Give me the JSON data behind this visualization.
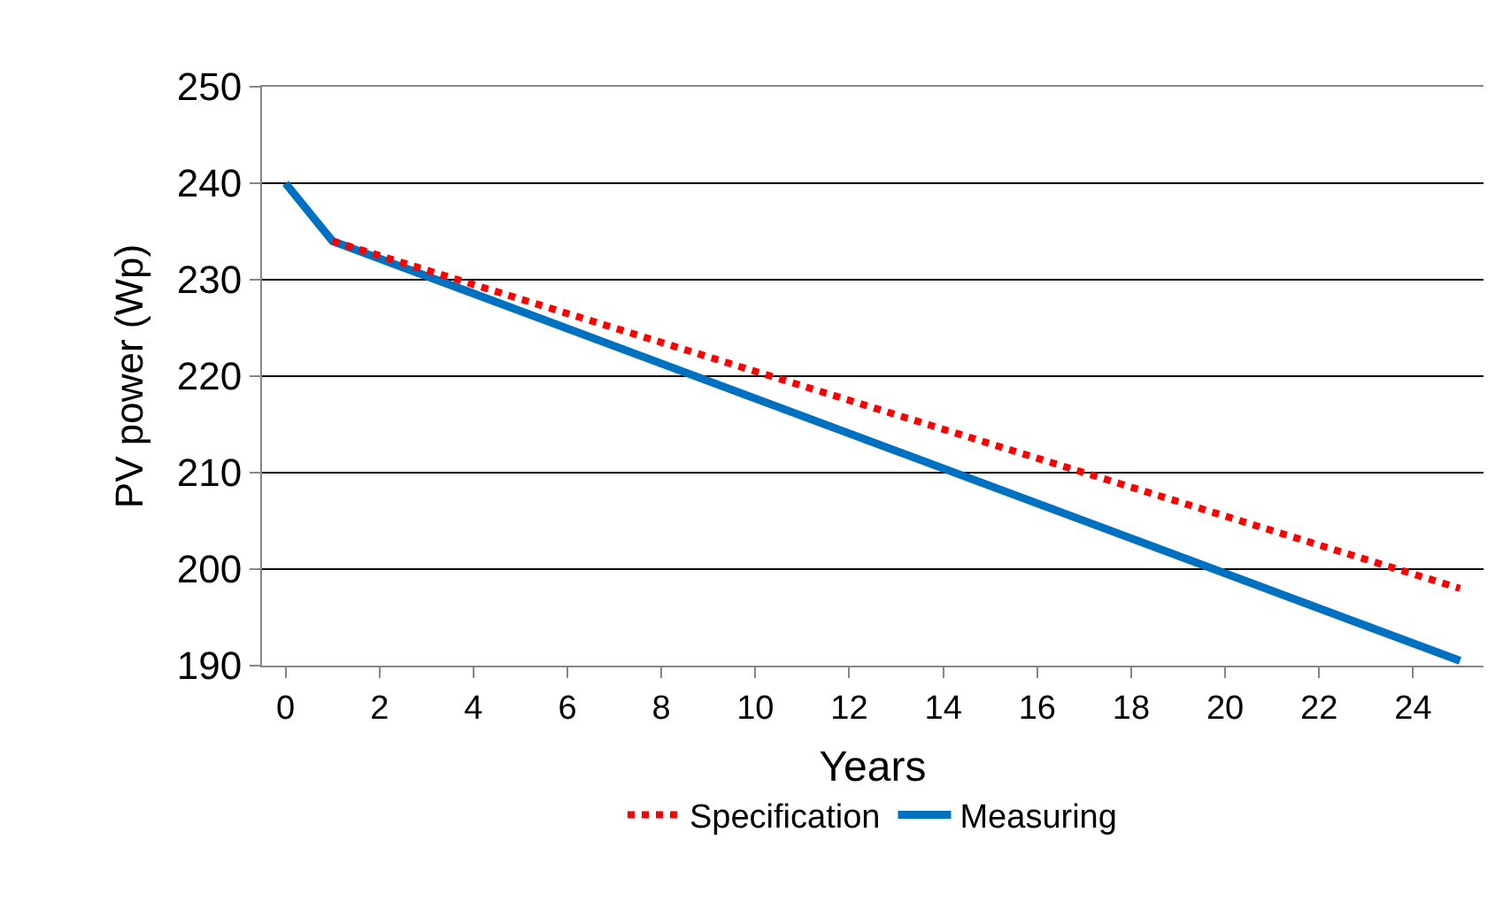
{
  "chart_data": {
    "type": "line",
    "xlabel": "Years",
    "ylabel": "PV power (Wp)",
    "xlim": [
      -0.5,
      25.5
    ],
    "xticks": [
      0,
      2,
      4,
      6,
      8,
      10,
      12,
      14,
      16,
      18,
      20,
      22,
      24
    ],
    "ylim": [
      190,
      250
    ],
    "yticks": [
      190,
      200,
      210,
      220,
      230,
      240,
      250
    ],
    "grid": "y",
    "legend": "bottom",
    "marker": "none",
    "series": [
      {
        "name": "Specification",
        "color": "#ff0000",
        "line_style": "dotted",
        "x": [
          1,
          25
        ],
        "values": [
          234,
          198
        ]
      },
      {
        "name": "Measuring",
        "color": "#0070c0",
        "line_style": "solid",
        "x": [
          0,
          1,
          25
        ],
        "values": [
          240,
          234,
          190.5
        ]
      }
    ]
  }
}
